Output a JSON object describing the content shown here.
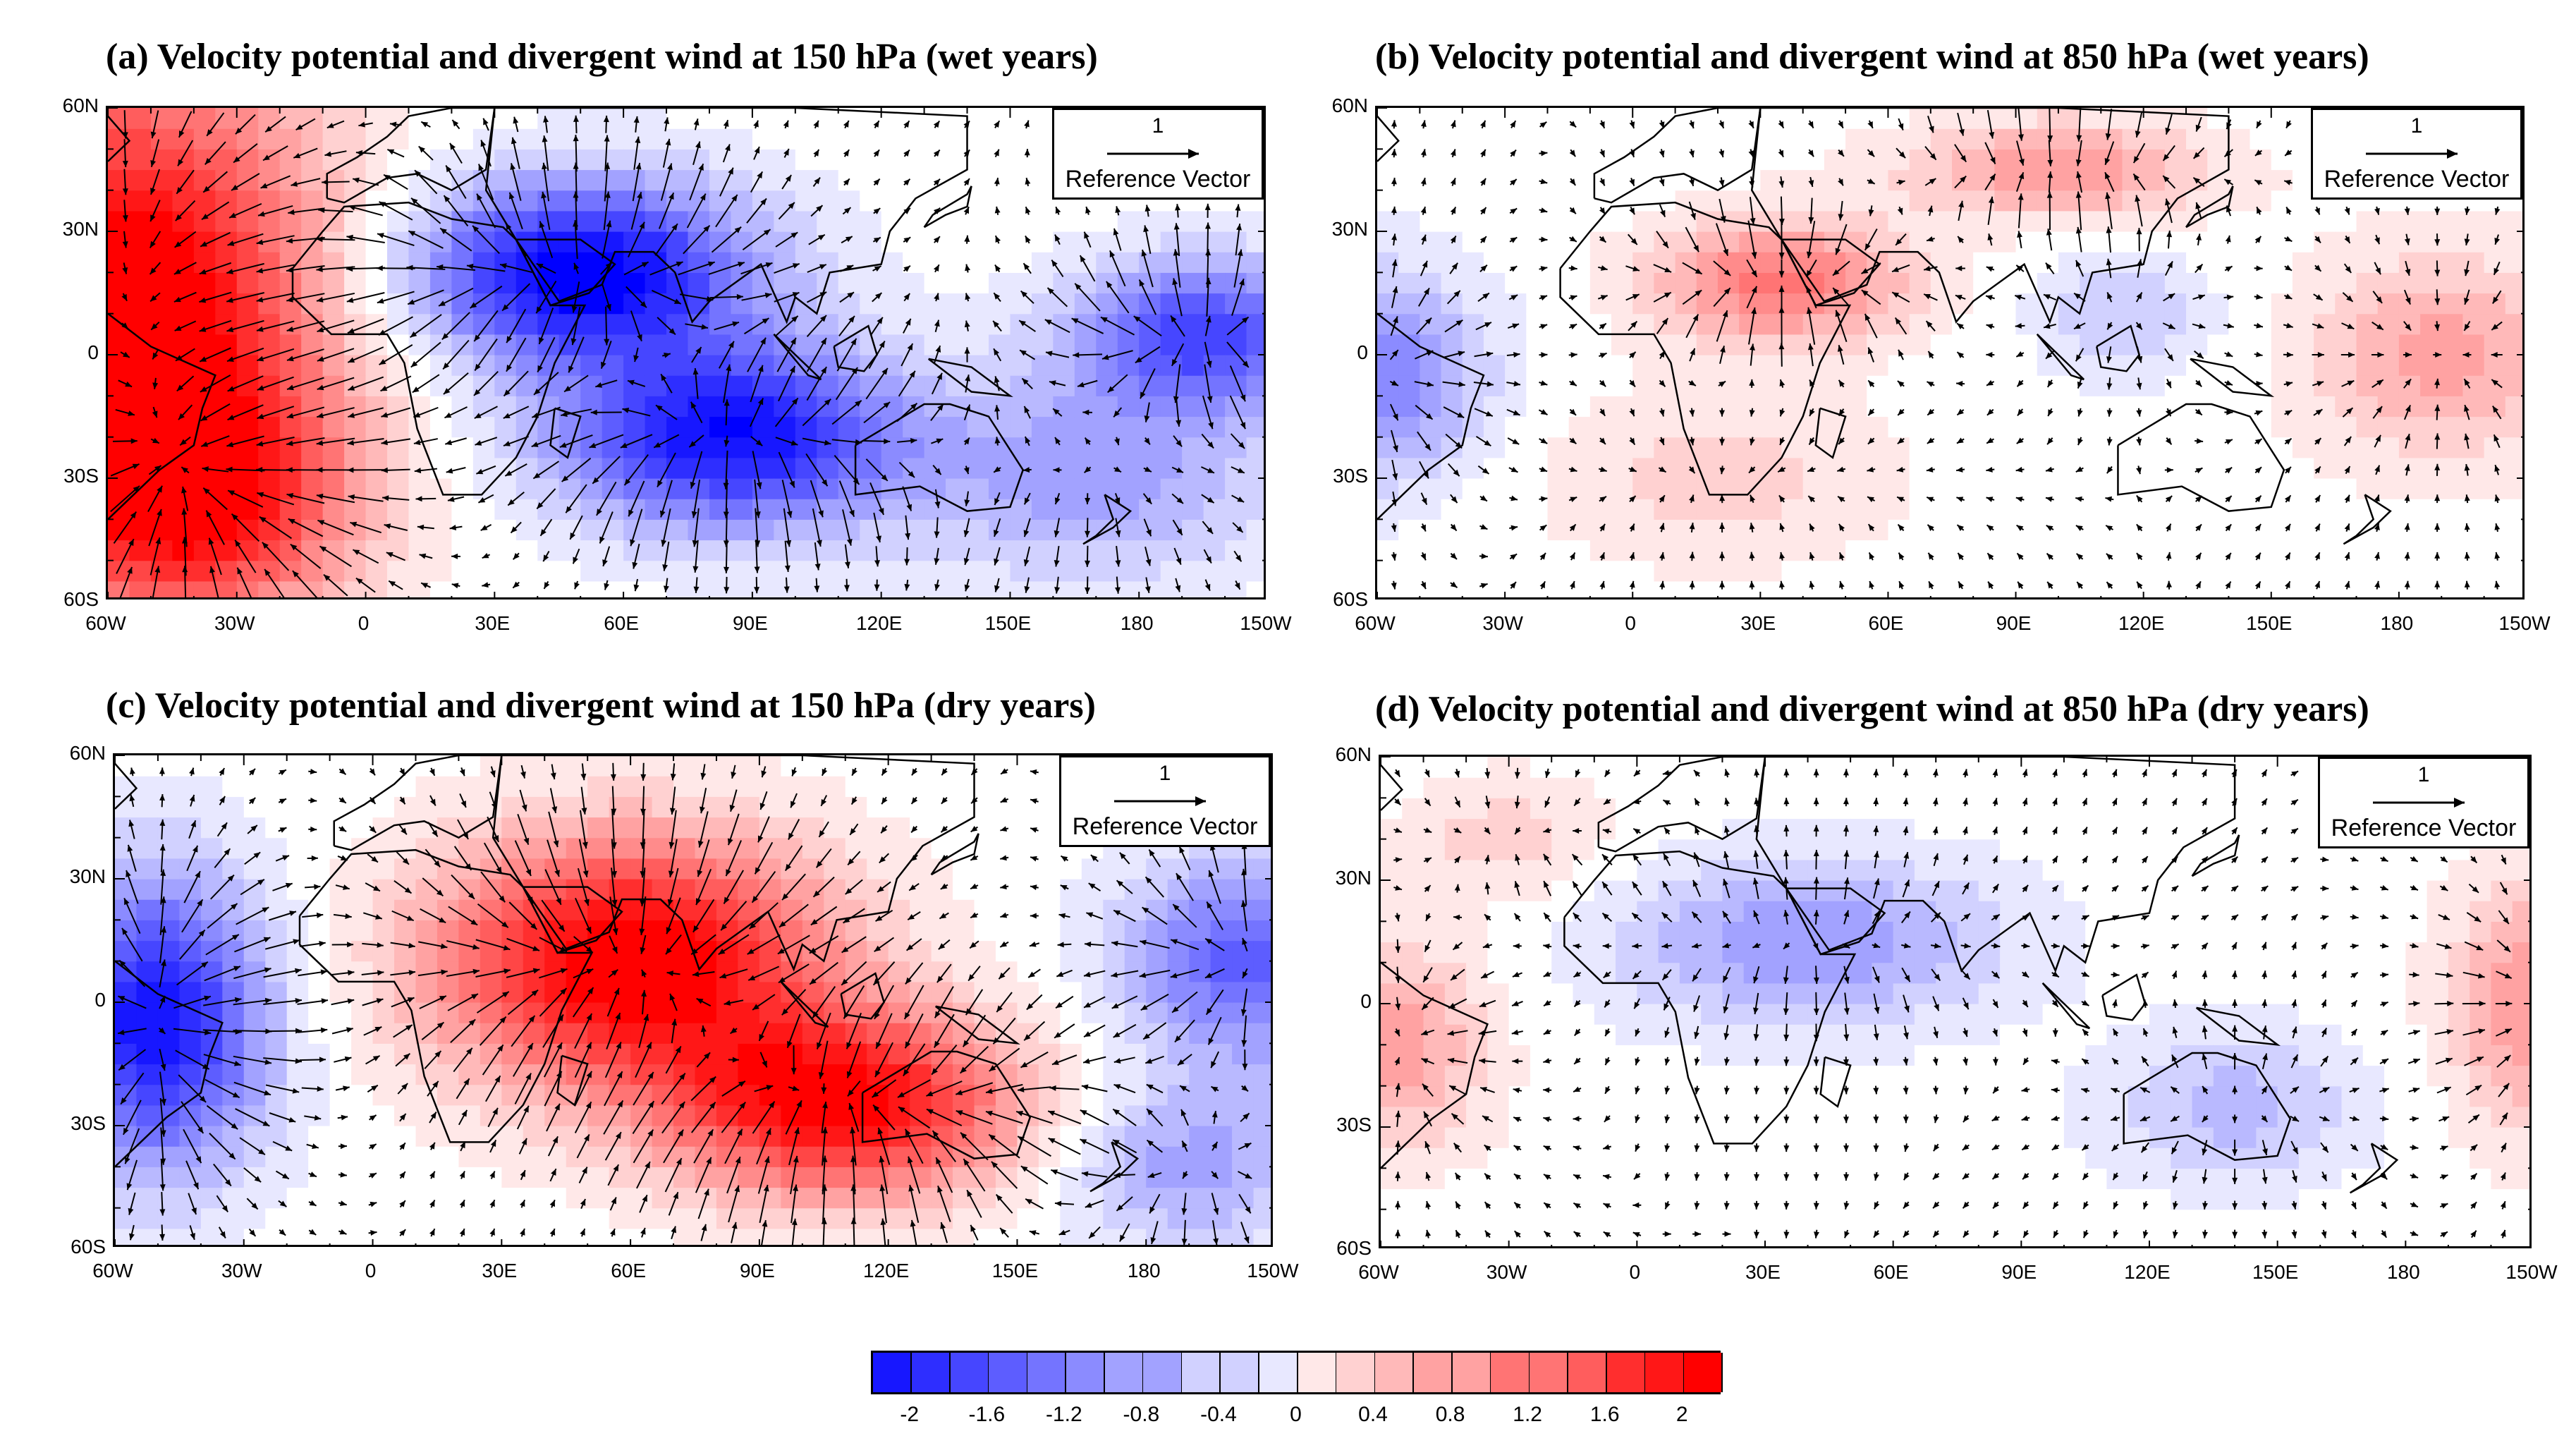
{
  "figure": {
    "panels": [
      {
        "id": "a",
        "title": "(a) Velocity potential and divergent wind at 150 hPa (wet years)",
        "level": "150 hPa",
        "period": "wet years"
      },
      {
        "id": "b",
        "title": "(b) Velocity potential and divergent wind at 850 hPa (wet years)",
        "level": "850 hPa",
        "period": "wet years"
      },
      {
        "id": "c",
        "title": "(c) Velocity potential and divergent wind at 150 hPa (dry years)",
        "level": "150 hPa",
        "period": "dry years"
      },
      {
        "id": "d",
        "title": "(d) Velocity potential and divergent wind at 850 hPa (dry years)",
        "level": "850 hPa",
        "period": "dry years"
      }
    ],
    "lat_ticks": [
      "60N",
      "30N",
      "0",
      "30S",
      "60S"
    ],
    "lon_ticks": [
      "60W",
      "30W",
      "0",
      "30E",
      "60E",
      "90E",
      "120E",
      "150E",
      "180",
      "150W"
    ],
    "reference_vector": {
      "magnitude": "1",
      "label": "Reference Vector"
    },
    "colors": {
      "low": "#0000ff",
      "mid": "#ffffff",
      "high": "#ff0000",
      "coast": "#000000"
    }
  },
  "chart_data": {
    "type": "heatmap",
    "map_extent": {
      "lon": [
        -60,
        210
      ],
      "lat": [
        -60,
        60
      ]
    },
    "colorbar": {
      "min": -2.2,
      "max": 2.2,
      "levels": [
        -2,
        -1.8,
        -1.6,
        -1.4,
        -1.2,
        -1,
        -0.8,
        -0.6,
        -0.4,
        -0.2,
        0,
        0.2,
        0.4,
        0.6,
        0.8,
        1,
        1.2,
        1.4,
        1.6,
        1.8,
        2
      ],
      "tick_labels": [
        "-2",
        "-1.6",
        "-1.2",
        "-0.8",
        "-0.4",
        "0",
        "0.4",
        "0.8",
        "1.2",
        "1.6",
        "2"
      ]
    },
    "fields": [
      {
        "panel": "a",
        "centers": [
          {
            "lon": -55,
            "lat": 15,
            "amp": 2.4,
            "sx": 45,
            "sy": 55
          },
          {
            "lon": -40,
            "lat": -35,
            "amp": 1.8,
            "sx": 35,
            "sy": 30
          },
          {
            "lon": 50,
            "lat": 20,
            "amp": -2.3,
            "sx": 40,
            "sy": 22
          },
          {
            "lon": 85,
            "lat": -20,
            "amp": -2.1,
            "sx": 40,
            "sy": 22
          },
          {
            "lon": 195,
            "lat": 5,
            "amp": -1.6,
            "sx": 30,
            "sy": 18
          },
          {
            "lon": 170,
            "lat": -30,
            "amp": -0.8,
            "sx": 40,
            "sy": 25
          }
        ]
      },
      {
        "panel": "b",
        "centers": [
          {
            "lon": 35,
            "lat": 18,
            "amp": 1.2,
            "sx": 30,
            "sy": 15
          },
          {
            "lon": 100,
            "lat": 45,
            "amp": 0.9,
            "sx": 35,
            "sy": 12
          },
          {
            "lon": 190,
            "lat": 0,
            "amp": 0.8,
            "sx": 30,
            "sy": 25
          },
          {
            "lon": -60,
            "lat": -5,
            "amp": -1.1,
            "sx": 25,
            "sy": 25
          },
          {
            "lon": 115,
            "lat": 10,
            "amp": -0.5,
            "sx": 20,
            "sy": 15
          },
          {
            "lon": 20,
            "lat": -30,
            "amp": 0.4,
            "sx": 40,
            "sy": 20
          }
        ]
      },
      {
        "panel": "c",
        "centers": [
          {
            "lon": 60,
            "lat": 10,
            "amp": 2.4,
            "sx": 45,
            "sy": 30
          },
          {
            "lon": 110,
            "lat": -25,
            "amp": 2.2,
            "sx": 40,
            "sy": 22
          },
          {
            "lon": -50,
            "lat": -5,
            "amp": -2.1,
            "sx": 25,
            "sy": 35
          },
          {
            "lon": 205,
            "lat": 10,
            "amp": -1.4,
            "sx": 30,
            "sy": 25
          },
          {
            "lon": 190,
            "lat": -40,
            "amp": -0.8,
            "sx": 30,
            "sy": 20
          }
        ]
      },
      {
        "panel": "d",
        "centers": [
          {
            "lon": 40,
            "lat": 15,
            "amp": -0.9,
            "sx": 45,
            "sy": 20
          },
          {
            "lon": 140,
            "lat": -25,
            "amp": -0.6,
            "sx": 30,
            "sy": 18
          },
          {
            "lon": -55,
            "lat": -10,
            "amp": 0.8,
            "sx": 20,
            "sy": 25
          },
          {
            "lon": 210,
            "lat": 0,
            "amp": 0.9,
            "sx": 20,
            "sy": 30
          },
          {
            "lon": -30,
            "lat": 40,
            "amp": 0.4,
            "sx": 25,
            "sy": 15
          }
        ]
      }
    ]
  }
}
